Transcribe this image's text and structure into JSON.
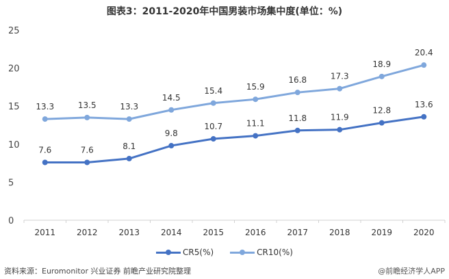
{
  "title": "图表3：2011-2020年中国男装市场集中度(单位：%)",
  "source": "资料来源：Euromonitor 兴业证券 前瞻产业研究院整理",
  "credit": "@前瞻经济学人APP",
  "colors": {
    "cr5": "#4472C4",
    "cr10": "#7FA7DC",
    "axis": "#d0d0d0",
    "text": "#333333"
  },
  "chart_data": {
    "type": "line",
    "title": "图表3：2011-2020年中国男装市场集中度(单位：%)",
    "xlabel": "",
    "ylabel": "",
    "categories": [
      "2011",
      "2012",
      "2013",
      "2014",
      "2015",
      "2016",
      "2017",
      "2018",
      "2019",
      "2020"
    ],
    "series": [
      {
        "name": "CR5(%)",
        "values": [
          7.6,
          7.6,
          8.1,
          9.8,
          10.7,
          11.1,
          11.8,
          11.9,
          12.8,
          13.6
        ]
      },
      {
        "name": "CR10(%)",
        "values": [
          13.3,
          13.5,
          13.3,
          14.5,
          15.4,
          15.9,
          16.8,
          17.3,
          18.9,
          20.4
        ]
      }
    ],
    "ylim": [
      0,
      25
    ],
    "yticks": [
      0,
      5,
      10,
      15,
      20,
      25
    ],
    "grid": false,
    "legend_position": "bottom",
    "data_labels": true
  }
}
